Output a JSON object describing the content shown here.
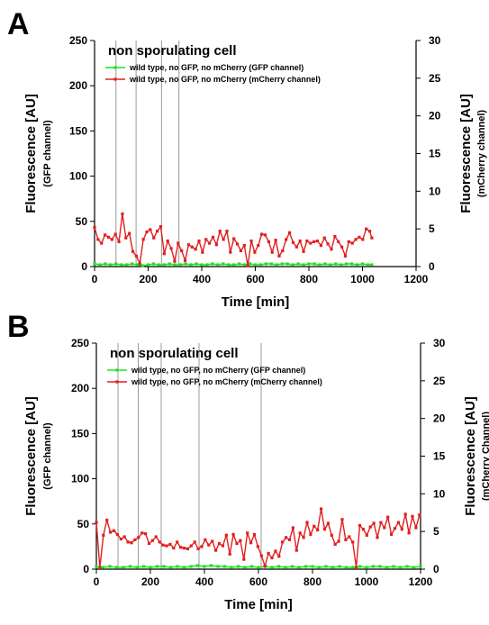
{
  "chart_data": [
    {
      "type": "line",
      "panel_label": "A",
      "title": "non sporulating cell",
      "xlabel": "Time [min]",
      "ylabel_left": "Fluorescence [AU]",
      "ylabel_left_sub": "(GFP channel)",
      "ylabel_right": "Fluorescence [AU]",
      "ylabel_right_sub": "(mCherry channel)",
      "xlim": [
        0,
        1200
      ],
      "xticks": [
        0,
        200,
        400,
        600,
        800,
        1000,
        1200
      ],
      "ylim_left": [
        0,
        250
      ],
      "yticks_left": [
        0,
        50,
        100,
        150,
        200,
        250
      ],
      "ylim_right": [
        0,
        30
      ],
      "yticks_right": [
        0,
        5,
        10,
        15,
        20,
        25,
        30
      ],
      "vlines": [
        80,
        155,
        250,
        315
      ],
      "legend_placement": "top-left",
      "series": [
        {
          "name": "wild type, no GFP, no mCherry (GFP channel)",
          "color": "#22e022",
          "axis": "left",
          "x": [
            0,
            20,
            40,
            60,
            80,
            100,
            120,
            140,
            160,
            180,
            200,
            220,
            240,
            260,
            280,
            300,
            320,
            340,
            360,
            380,
            400,
            420,
            440,
            460,
            480,
            500,
            520,
            540,
            560,
            580,
            600,
            620,
            640,
            660,
            680,
            700,
            720,
            740,
            760,
            780,
            800,
            820,
            840,
            860,
            880,
            900,
            920,
            940,
            960,
            980,
            1000,
            1020,
            1035
          ],
          "y": [
            3,
            2,
            3,
            2,
            3,
            2,
            2,
            3,
            2,
            1,
            2,
            3,
            2,
            2,
            3,
            2,
            2,
            3,
            2,
            3,
            2,
            2,
            3,
            2,
            3,
            2,
            2,
            3,
            2,
            3,
            2,
            2,
            3,
            3,
            2,
            3,
            3,
            2,
            3,
            2,
            3,
            3,
            2,
            3,
            2,
            3,
            2,
            3,
            3,
            2,
            3,
            2,
            2
          ]
        },
        {
          "name": "wild type, no GFP, no mCherry (mCherry channel)",
          "color": "#e02020",
          "axis": "right",
          "x": [
            0,
            13,
            26,
            39,
            52,
            65,
            78,
            91,
            104,
            117,
            130,
            143,
            156,
            169,
            182,
            195,
            208,
            221,
            234,
            247,
            260,
            273,
            286,
            299,
            312,
            325,
            338,
            351,
            364,
            377,
            390,
            403,
            416,
            429,
            442,
            455,
            468,
            481,
            494,
            507,
            520,
            533,
            546,
            559,
            572,
            585,
            598,
            611,
            624,
            637,
            650,
            663,
            676,
            689,
            702,
            715,
            728,
            741,
            754,
            767,
            780,
            793,
            806,
            819,
            832,
            845,
            858,
            871,
            884,
            897,
            910,
            923,
            936,
            949,
            962,
            975,
            988,
            1001,
            1014,
            1027,
            1035
          ],
          "y": [
            5.2,
            3.6,
            3.1,
            4.2,
            3.9,
            3.6,
            4.3,
            3.3,
            7.0,
            3.8,
            4.4,
            2.0,
            1.4,
            0.4,
            3.6,
            4.6,
            4.9,
            3.8,
            4.7,
            5.3,
            1.7,
            3.4,
            2.4,
            0.7,
            3.1,
            2.1,
            0.8,
            2.9,
            2.6,
            2.3,
            3.4,
            1.9,
            3.6,
            3.1,
            3.9,
            2.9,
            4.7,
            3.6,
            4.7,
            1.9,
            3.7,
            3.0,
            2.1,
            2.8,
            0.1,
            3.4,
            1.9,
            2.8,
            4.3,
            4.2,
            3.3,
            1.9,
            3.5,
            1.4,
            2.1,
            3.6,
            4.5,
            3.2,
            2.6,
            3.4,
            2.0,
            3.4,
            3.1,
            3.3,
            3.4,
            2.8,
            3.8,
            3.0,
            2.3,
            4.0,
            3.3,
            2.6,
            1.4,
            3.3,
            3.1,
            3.6,
            3.9,
            3.6,
            5.0,
            4.7,
            3.8
          ]
        }
      ]
    },
    {
      "type": "line",
      "panel_label": "B",
      "title": "non sporulating cell",
      "xlabel": "Time [min]",
      "ylabel_left": "Fluorescence [AU]",
      "ylabel_left_sub": "(GFP channel)",
      "ylabel_right": "Fluorescence [AU]",
      "ylabel_right_sub": "(mCherry Channel)",
      "xlim": [
        0,
        1200
      ],
      "xticks": [
        0,
        200,
        400,
        600,
        800,
        1000,
        1200
      ],
      "ylim_left": [
        0,
        250
      ],
      "yticks_left": [
        0,
        50,
        100,
        150,
        200,
        250
      ],
      "ylim_right": [
        0,
        30
      ],
      "yticks_right": [
        0,
        5,
        10,
        15,
        20,
        25,
        30
      ],
      "vlines": [
        80,
        155,
        240,
        380,
        610
      ],
      "legend_placement": "top-left",
      "series": [
        {
          "name": "wild type, no GFP, no mCherry (GFP channel)",
          "color": "#22e022",
          "axis": "left",
          "x": [
            0,
            25,
            50,
            75,
            100,
            125,
            150,
            175,
            200,
            225,
            250,
            275,
            300,
            325,
            350,
            375,
            400,
            425,
            450,
            475,
            500,
            525,
            550,
            575,
            600,
            625,
            650,
            675,
            700,
            725,
            750,
            775,
            800,
            825,
            850,
            875,
            900,
            925,
            950,
            975,
            1000,
            1025,
            1050,
            1075,
            1100,
            1125,
            1150,
            1175,
            1200
          ],
          "y": [
            3,
            2,
            3,
            2,
            2,
            3,
            2,
            3,
            2,
            3,
            3,
            2,
            3,
            2,
            3,
            4,
            3,
            4,
            3,
            3,
            2,
            3,
            2,
            3,
            2,
            3,
            2,
            3,
            2,
            3,
            2,
            3,
            3,
            2,
            3,
            2,
            3,
            2,
            2,
            3,
            2,
            3,
            3,
            2,
            3,
            2,
            3,
            2,
            3
          ]
        },
        {
          "name": "wild type, no GFP, no mCherry (mCherry channel)",
          "color": "#e02020",
          "axis": "right",
          "x": [
            0,
            13,
            26,
            39,
            52,
            65,
            78,
            91,
            104,
            117,
            130,
            143,
            156,
            169,
            182,
            195,
            208,
            221,
            234,
            247,
            260,
            273,
            286,
            299,
            312,
            325,
            338,
            351,
            364,
            377,
            390,
            403,
            416,
            429,
            442,
            455,
            468,
            481,
            494,
            507,
            520,
            533,
            546,
            559,
            572,
            585,
            598,
            611,
            624,
            637,
            650,
            663,
            676,
            689,
            702,
            715,
            728,
            741,
            754,
            767,
            780,
            793,
            806,
            819,
            832,
            845,
            858,
            871,
            884,
            897,
            910,
            923,
            936,
            949,
            962,
            975,
            988,
            1001,
            1014,
            1027,
            1040,
            1053,
            1066,
            1079,
            1092,
            1105,
            1118,
            1131,
            1144,
            1157,
            1170,
            1183,
            1196
          ],
          "y": [
            6.2,
            0.2,
            4.5,
            6.5,
            4.9,
            5.1,
            4.6,
            4.0,
            4.3,
            3.6,
            3.5,
            3.9,
            4.2,
            4.8,
            4.7,
            3.4,
            3.8,
            4.3,
            3.6,
            3.2,
            3.1,
            3.3,
            2.8,
            3.6,
            2.9,
            2.8,
            2.7,
            3.1,
            3.6,
            2.7,
            3.0,
            3.9,
            3.2,
            3.7,
            2.5,
            3.4,
            3.1,
            4.5,
            2.0,
            4.6,
            3.4,
            3.8,
            1.3,
            4.8,
            3.5,
            4.6,
            3.0,
            1.8,
            0.4,
            2.1,
            1.5,
            2.4,
            1.7,
            3.6,
            4.2,
            3.9,
            5.5,
            2.5,
            4.8,
            4.2,
            6.2,
            4.6,
            5.7,
            5.2,
            8.0,
            5.3,
            6.1,
            4.5,
            3.3,
            3.7,
            6.6,
            3.9,
            4.3,
            3.6,
            0.2,
            5.8,
            5.3,
            4.5,
            5.6,
            6.1,
            4.2,
            6.2,
            5.5,
            6.9,
            4.6,
            5.4,
            6.2,
            5.3,
            7.3,
            4.8,
            7.0,
            5.5,
            7.2
          ]
        }
      ]
    }
  ]
}
